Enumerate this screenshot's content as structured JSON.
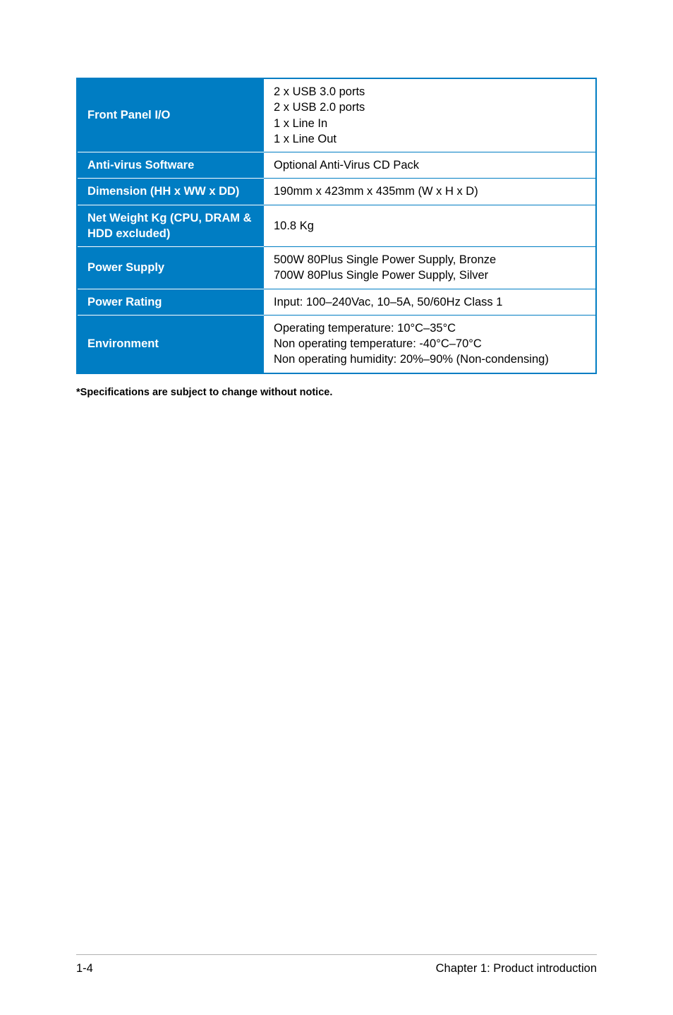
{
  "spec_table": {
    "border_color": "#007dc3",
    "label_bg": "#007dc3",
    "label_fg": "#ffffff",
    "value_bg": "#ffffff",
    "value_fg": "#000000",
    "rows": [
      {
        "label": "Front Panel I/O",
        "value_lines": [
          "2 x USB 3.0 ports",
          "2 x USB 2.0 ports",
          "1 x Line In",
          "1 x Line Out"
        ]
      },
      {
        "label": "Anti-virus Software",
        "value_lines": [
          "Optional Anti-Virus CD Pack"
        ]
      },
      {
        "label": "Dimension (HH x WW x DD)",
        "value_lines": [
          "190mm x 423mm x 435mm (W x H x D)"
        ]
      },
      {
        "label": "Net Weight Kg (CPU, DRAM & HDD excluded)",
        "value_lines": [
          "10.8 Kg"
        ]
      },
      {
        "label": "Power Supply",
        "value_lines": [
          "500W 80Plus Single Power Supply, Bronze",
          "700W 80Plus Single Power Supply, Silver"
        ]
      },
      {
        "label": "Power Rating",
        "value_lines": [
          "Input: 100–240Vac, 10–5A, 50/60Hz Class 1"
        ]
      },
      {
        "label": "Environment",
        "value_lines": [
          "Operating temperature: 10°C–35°C",
          "Non operating temperature: -40°C–70°C",
          "Non operating humidity: 20%–90% (Non-condensing)"
        ]
      }
    ]
  },
  "footnote": "*Specifications are subject to change without notice.",
  "footer": {
    "page_number": "1-4",
    "chapter": "Chapter 1:  Product introduction"
  }
}
